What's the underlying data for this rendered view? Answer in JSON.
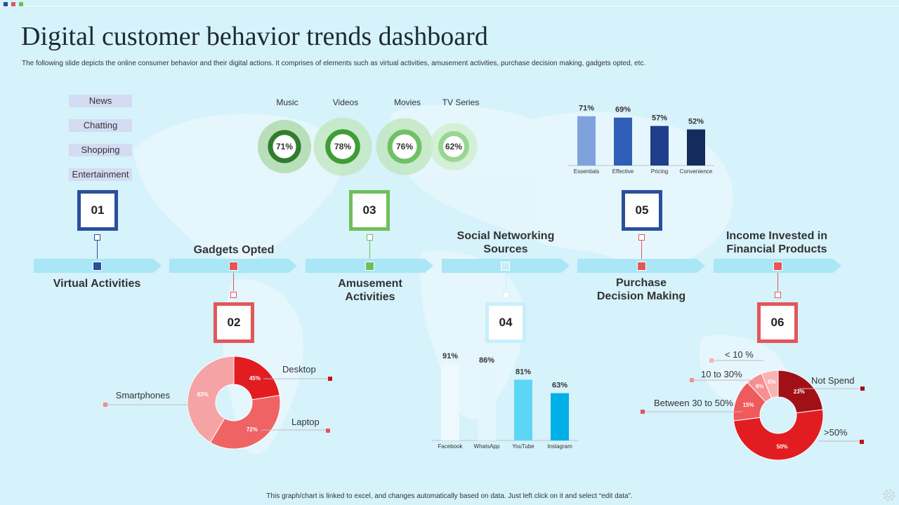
{
  "header": {
    "title": "Digital customer behavior trends dashboard",
    "subtitle": "The following slide depicts the online consumer behavior and their digital actions. It comprises of elements such as virtual activities, amusement activities, purchase decision making, gadgets opted, etc."
  },
  "virtual_tags": [
    "News",
    "Chatting",
    "Shopping",
    "Entertainment"
  ],
  "steps": [
    {
      "num": "01",
      "label": "Virtual Activities"
    },
    {
      "num": "02",
      "label": "Gadgets Opted"
    },
    {
      "num": "03",
      "label": "Amusement Activities"
    },
    {
      "num": "04",
      "label": "Social Networking Sources"
    },
    {
      "num": "05",
      "label": "Purchase Decision Making"
    },
    {
      "num": "06",
      "label": "Income Invested in Financial Products"
    }
  ],
  "colors": {
    "blue": "#2a4f9b",
    "red": "#e2575a",
    "green": "#6fbf5b",
    "cyan": "#c9eefb"
  },
  "footer": "This graph/chart is linked to excel, and changes automatically based on data. Just left click on it and select “edit data”.",
  "chart_data": [
    {
      "id": "amusement",
      "type": "bar",
      "title": "Amusement Activities",
      "categories": [
        "Music",
        "Videos",
        "Movies",
        "TV Series"
      ],
      "values": [
        71,
        78,
        76,
        62
      ],
      "value_labels": [
        "71%",
        "78%",
        "76%",
        "62%"
      ],
      "unit": "%"
    },
    {
      "id": "purchase",
      "type": "bar",
      "title": "Purchase Decision Making",
      "categories": [
        "Essentials",
        "Effective",
        "Pricing",
        "Convenience"
      ],
      "values": [
        71,
        69,
        57,
        52
      ],
      "value_labels": [
        "71%",
        "69%",
        "57%",
        "52%"
      ],
      "ylim": [
        0,
        100
      ],
      "unit": "%"
    },
    {
      "id": "gadgets",
      "type": "pie",
      "title": "Gadgets Opted",
      "labels": [
        "Desktop",
        "Laptop",
        "Smartphones"
      ],
      "values": [
        45,
        72,
        83
      ],
      "value_labels": [
        "45%",
        "72%",
        "83%"
      ],
      "colors": [
        "#e21d22",
        "#ef6364",
        "#f6a3a5"
      ]
    },
    {
      "id": "social",
      "type": "bar",
      "title": "Social Networking Sources",
      "categories": [
        "Facebook",
        "WhatsApp",
        "YouTube",
        "Instagram"
      ],
      "values": [
        91,
        86,
        81,
        63
      ],
      "value_labels": [
        "91%",
        "86%",
        "81%",
        "63%"
      ],
      "ylim": [
        0,
        100
      ],
      "unit": "%"
    },
    {
      "id": "income",
      "type": "pie",
      "title": "Income Invested in Financial Products",
      "labels": [
        "Not Spend",
        ">50%",
        "Between 30 to 50%",
        "10 to 30%",
        "< 10 %"
      ],
      "values": [
        23,
        50,
        15,
        6,
        6
      ],
      "value_labels": [
        "23%",
        "50%",
        "15%",
        "6%",
        "6%"
      ],
      "colors": [
        "#a11016",
        "#e21d22",
        "#ef5a5c",
        "#f58f91",
        "#f9b3b4"
      ]
    }
  ]
}
